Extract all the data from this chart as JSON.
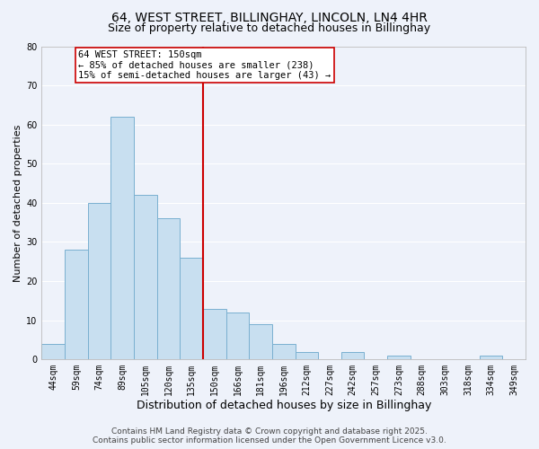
{
  "title": "64, WEST STREET, BILLINGHAY, LINCOLN, LN4 4HR",
  "subtitle": "Size of property relative to detached houses in Billinghay",
  "xlabel": "Distribution of detached houses by size in Billinghay",
  "ylabel": "Number of detached properties",
  "bar_color": "#c8dff0",
  "bar_edge_color": "#7ab0d0",
  "background_color": "#eef2fa",
  "grid_color": "#ffffff",
  "bin_labels": [
    "44sqm",
    "59sqm",
    "74sqm",
    "89sqm",
    "105sqm",
    "120sqm",
    "135sqm",
    "150sqm",
    "166sqm",
    "181sqm",
    "196sqm",
    "212sqm",
    "227sqm",
    "242sqm",
    "257sqm",
    "273sqm",
    "288sqm",
    "303sqm",
    "318sqm",
    "334sqm",
    "349sqm"
  ],
  "bar_heights": [
    4,
    28,
    40,
    62,
    42,
    36,
    26,
    13,
    12,
    9,
    4,
    2,
    0,
    2,
    0,
    1,
    0,
    0,
    0,
    1,
    0
  ],
  "vline_index": 7,
  "vline_color": "#cc0000",
  "annotation_title": "64 WEST STREET: 150sqm",
  "annotation_line1": "← 85% of detached houses are smaller (238)",
  "annotation_line2": "15% of semi-detached houses are larger (43) →",
  "annotation_box_color": "#ffffff",
  "annotation_box_edge": "#cc0000",
  "ylim": [
    0,
    80
  ],
  "yticks": [
    0,
    10,
    20,
    30,
    40,
    50,
    60,
    70,
    80
  ],
  "footer1": "Contains HM Land Registry data © Crown copyright and database right 2025.",
  "footer2": "Contains public sector information licensed under the Open Government Licence v3.0.",
  "title_fontsize": 10,
  "subtitle_fontsize": 9,
  "xlabel_fontsize": 9,
  "ylabel_fontsize": 8,
  "tick_fontsize": 7,
  "annotation_title_fontsize": 8,
  "annotation_fontsize": 7.5,
  "footer_fontsize": 6.5
}
